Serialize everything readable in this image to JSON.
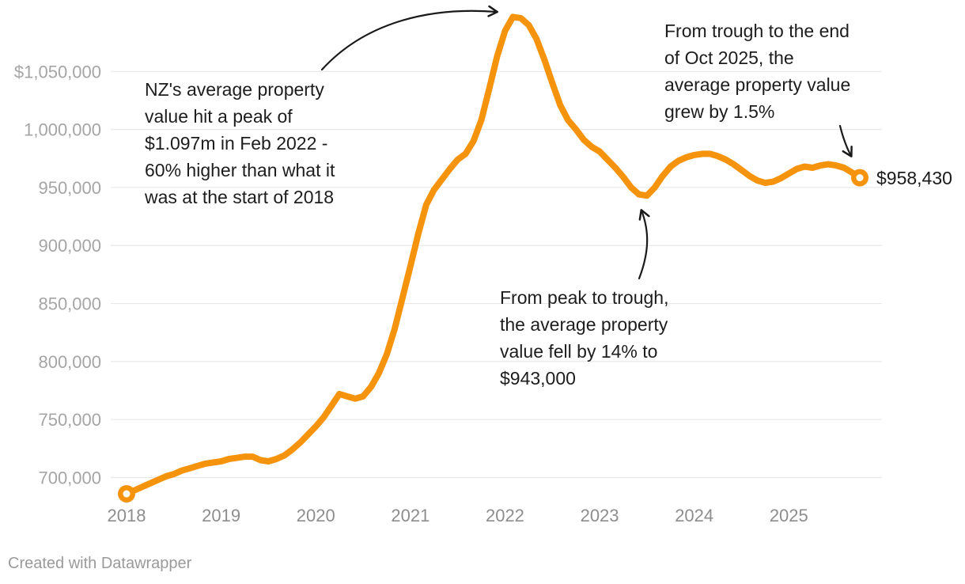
{
  "chart_data": {
    "type": "line",
    "title": "",
    "xlabel": "",
    "ylabel": "",
    "grid": true,
    "legend": "none",
    "line_color": "#F6930C",
    "grid_color": "#E8E8E8",
    "series": [
      {
        "name": "NZ average property value (NZD)",
        "start": "2018-01",
        "end": "2025-10",
        "frequency": "monthly",
        "values": [
          686000,
          689000,
          692000,
          695000,
          698000,
          701000,
          703000,
          706000,
          708000,
          710000,
          712000,
          713000,
          714000,
          716000,
          717000,
          718000,
          718000,
          715000,
          714000,
          716000,
          719000,
          724000,
          730000,
          737000,
          744000,
          752000,
          762000,
          772000,
          770000,
          768000,
          770000,
          778000,
          790000,
          806000,
          828000,
          855000,
          882000,
          910000,
          935000,
          948000,
          957000,
          966000,
          974000,
          979000,
          990000,
          1008000,
          1035000,
          1063000,
          1085000,
          1097000,
          1096000,
          1090000,
          1078000,
          1060000,
          1040000,
          1021000,
          1008000,
          1000000,
          991000,
          985000,
          981000,
          974000,
          967000,
          959000,
          950000,
          944000,
          943000,
          950000,
          960000,
          968000,
          973000,
          976000,
          978000,
          979000,
          979000,
          977000,
          974000,
          970000,
          965000,
          960000,
          956000,
          954000,
          955000,
          958000,
          962000,
          966000,
          968000,
          967000,
          969000,
          970000,
          969000,
          967000,
          963000,
          958430
        ]
      }
    ],
    "x_ticks": [
      "2018",
      "2019",
      "2020",
      "2021",
      "2022",
      "2023",
      "2024",
      "2025"
    ],
    "y_ticks": [
      {
        "label": "$1,050,000",
        "value": 1050000
      },
      {
        "label": "1,000,000",
        "value": 1000000
      },
      {
        "label": "950,000",
        "value": 950000
      },
      {
        "label": "900,000",
        "value": 900000
      },
      {
        "label": "850,000",
        "value": 850000
      },
      {
        "label": "800,000",
        "value": 800000
      },
      {
        "label": "750,000",
        "value": 750000
      },
      {
        "label": "700,000",
        "value": 700000
      }
    ],
    "ylim": [
      686000,
      1100000
    ],
    "end_label": "$958,430"
  },
  "annotations": {
    "peak": {
      "text": "NZ's average property\nvalue hit a peak of\n$1.097m in Feb 2022 -\n60% higher than what it\nwas at the start of 2018"
    },
    "trough": {
      "text": "From peak to trough,\nthe average property\nvalue fell by 14% to\n$943,000"
    },
    "end": {
      "text": "From trough to the end\nof Oct 2025, the\naverage property value\ngrew by 1.5%"
    }
  },
  "footer": {
    "credit": "Created with Datawrapper"
  },
  "colors": {
    "line": "#F6930C",
    "gridline": "#E8E8E8",
    "y_axis_text": "#a5a5a5",
    "x_axis_text": "#8d8d8d",
    "annotation_text": "#1d1d1d",
    "arrow": "#1a1a1a",
    "credit_text": "#9a9a9a",
    "background": "#ffffff"
  }
}
